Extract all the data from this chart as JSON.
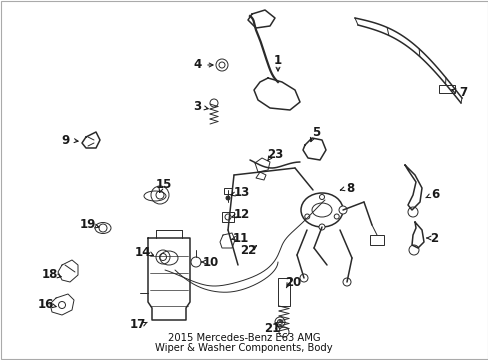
{
  "title_line1": "2015 Mercedes-Benz E63 AMG",
  "title_line2": "Wiper & Washer Components, Body",
  "background_color": "#ffffff",
  "border_color": "#aaaaaa",
  "line_color": "#2a2a2a",
  "label_color": "#1a1a1a",
  "title_fontsize": 7.2,
  "label_fontsize": 8.5,
  "lw_thick": 1.6,
  "lw_main": 1.1,
  "lw_thin": 0.7,
  "labels": [
    [
      "1",
      278,
      60,
      278,
      78
    ],
    [
      "2",
      434,
      238,
      423,
      238
    ],
    [
      "3",
      197,
      107,
      215,
      110
    ],
    [
      "4",
      198,
      65,
      220,
      65
    ],
    [
      "5",
      316,
      132,
      308,
      148
    ],
    [
      "6",
      435,
      195,
      420,
      200
    ],
    [
      "7",
      463,
      92,
      445,
      88
    ],
    [
      "8",
      350,
      188,
      334,
      192
    ],
    [
      "9",
      66,
      140,
      85,
      142
    ],
    [
      "10",
      211,
      262,
      198,
      262
    ],
    [
      "11",
      241,
      238,
      228,
      240
    ],
    [
      "12",
      242,
      215,
      228,
      218
    ],
    [
      "13",
      242,
      193,
      227,
      196
    ],
    [
      "14",
      143,
      252,
      160,
      258
    ],
    [
      "15",
      164,
      185,
      158,
      196
    ],
    [
      "16",
      46,
      305,
      63,
      308
    ],
    [
      "17",
      138,
      325,
      153,
      320
    ],
    [
      "18",
      50,
      275,
      68,
      278
    ],
    [
      "19",
      88,
      225,
      103,
      228
    ],
    [
      "20",
      293,
      282,
      284,
      290
    ],
    [
      "21",
      272,
      328,
      280,
      322
    ],
    [
      "22",
      248,
      250,
      262,
      242
    ],
    [
      "23",
      275,
      155,
      265,
      163
    ]
  ]
}
